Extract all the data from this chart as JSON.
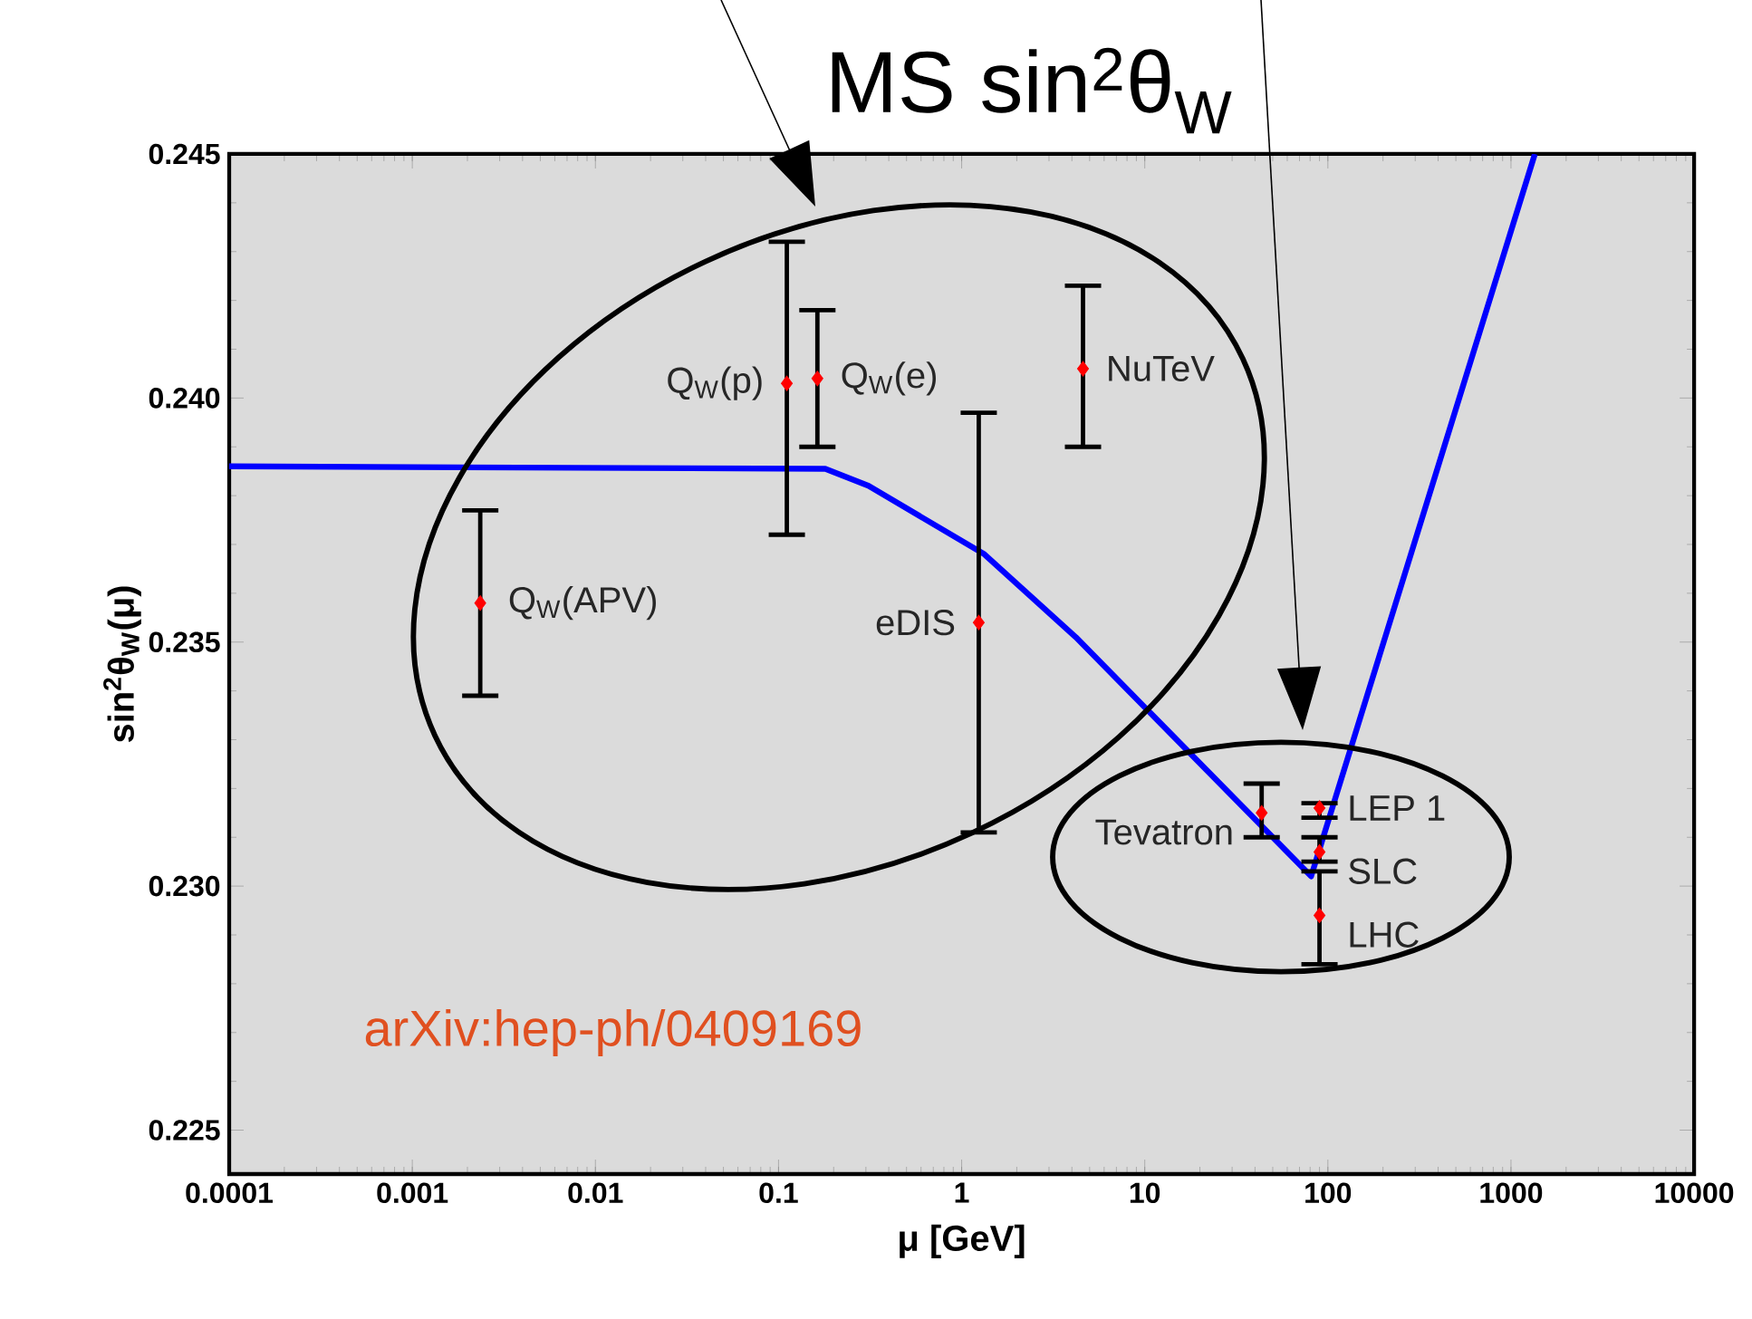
{
  "chart_data": {
    "type": "scatter",
    "xlabel": "μ [GeV]",
    "ylabel": "sin$^{2}$θ$_{W}$(μ)",
    "log": "x",
    "xlim": [
      0.0001,
      10000
    ],
    "ylim": [
      0.2241,
      0.245
    ],
    "xticks": [
      0.0001,
      0.001,
      0.01,
      0.1,
      1,
      10,
      100,
      1000,
      10000
    ],
    "yticks": [
      0.225,
      {
        "value": 0.23,
        "label": "0.230"
      },
      0.235,
      {
        "value": 0.24,
        "label": "0.240"
      },
      0.245
    ],
    "series": [
      {
        "type": "line",
        "color": "#0000ff",
        "x": [
          0.0001,
          0.18,
          0.31,
          1.33,
          4.2,
          81,
          1350
        ],
        "values": [
          0.2386,
          0.23855,
          0.2382,
          0.2368,
          0.2351,
          0.2302,
          0.245
        ]
      },
      {
        "color": "#ff0000",
        "marker": "diamond",
        "x": [
          0.00235,
          0.111,
          0.163,
          1.24,
          4.6,
          43.5,
          90,
          90,
          90
        ],
        "values": [
          0.2358,
          0.2403,
          0.2404,
          0.2354,
          0.2406,
          0.2315,
          0.2316,
          0.2307,
          0.2294
        ],
        "errors": [
          [
            0.2339,
            0.2377
          ],
          [
            0.2372,
            0.2432
          ],
          [
            0.239,
            0.2418
          ],
          [
            0.2311,
            0.2397
          ],
          [
            0.239,
            0.2423
          ],
          [
            0.231,
            0.2321
          ],
          [
            0.2314,
            0.2317
          ],
          [
            0.2305,
            0.231
          ],
          [
            0.2284,
            0.2303
          ]
        ]
      }
    ],
    "annotations": [
      "MS sin$^{2}$θ$_{W}$",
      "arXiv:hep-ph/0409169",
      {
        "text": "Q$_{W}$(APV)",
        "x": 0.00235,
        "y": 0.2358
      },
      {
        "text": "Q$_{W}$(p)",
        "x": 0.111,
        "y": 0.2403
      },
      {
        "text": "Q$_{W}$(e)",
        "x": 0.163,
        "y": 0.2404
      },
      {
        "text": "eDIS",
        "x": 1.24,
        "y": 0.2354
      },
      {
        "text": "NuTeV",
        "x": 4.6,
        "y": 0.2406
      },
      {
        "text": "Tevatron",
        "x": 43.5,
        "y": 0.2315
      },
      {
        "text": "LEP 1",
        "x": 90,
        "y": 0.2316
      },
      {
        "text": "SLC",
        "x": 90,
        "y": 0.2307
      },
      {
        "text": "LHC",
        "x": 90,
        "y": 0.2294
      }
    ]
  }
}
